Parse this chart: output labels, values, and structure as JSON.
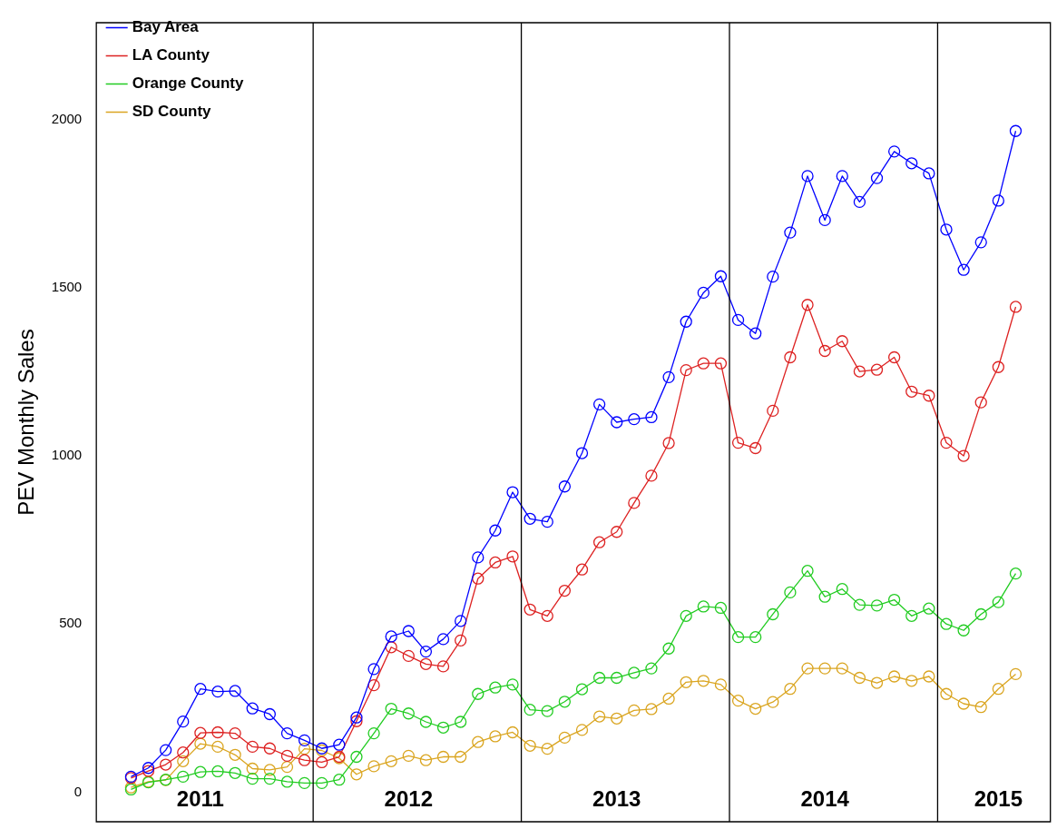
{
  "chart_data": {
    "type": "line",
    "ylabel": "PEV Monthly Sales",
    "x": [
      "2011-02",
      "2011-03",
      "2011-04",
      "2011-05",
      "2011-06",
      "2011-07",
      "2011-08",
      "2011-09",
      "2011-10",
      "2011-11",
      "2011-12",
      "2012-01",
      "2012-02",
      "2012-03",
      "2012-04",
      "2012-05",
      "2012-06",
      "2012-07",
      "2012-08",
      "2012-09",
      "2012-10",
      "2012-11",
      "2012-12",
      "2013-01",
      "2013-02",
      "2013-03",
      "2013-04",
      "2013-05",
      "2013-06",
      "2013-07",
      "2013-08",
      "2013-09",
      "2013-10",
      "2013-11",
      "2013-12",
      "2014-01",
      "2014-02",
      "2014-03",
      "2014-04",
      "2014-05",
      "2014-06",
      "2014-07",
      "2014-08",
      "2014-09",
      "2014-10",
      "2014-11",
      "2014-12",
      "2015-01",
      "2015-02",
      "2015-03",
      "2015-04",
      "2015-05"
    ],
    "series": [
      {
        "name": "Bay Area",
        "color": "#0000ff",
        "values": [
          46,
          72,
          125,
          210,
          307,
          299,
          301,
          249,
          232,
          175,
          154,
          130,
          141,
          222,
          366,
          463,
          479,
          418,
          455,
          509,
          698,
          778,
          892,
          813,
          804,
          909,
          1008,
          1153,
          1100,
          1109,
          1115,
          1234,
          1399,
          1485,
          1534,
          1404,
          1364,
          1533,
          1664,
          1832,
          1701,
          1832,
          1755,
          1826,
          1905,
          1870,
          1840,
          1673,
          1553,
          1635,
          1759,
          1966
        ]
      },
      {
        "name": "LA County",
        "color": "#dd2222",
        "values": [
          42,
          63,
          82,
          118,
          176,
          178,
          175,
          135,
          130,
          108,
          95,
          89,
          105,
          211,
          318,
          431,
          405,
          381,
          374,
          451,
          635,
          683,
          701,
          543,
          524,
          599,
          662,
          743,
          774,
          860,
          941,
          1038,
          1255,
          1275,
          1275,
          1039,
          1023,
          1134,
          1293,
          1449,
          1312,
          1341,
          1251,
          1256,
          1293,
          1191,
          1179,
          1039,
          1000,
          1159,
          1264,
          1443
        ]
      },
      {
        "name": "Orange County",
        "color": "#22cc22",
        "values": [
          8,
          29,
          37,
          46,
          60,
          62,
          57,
          40,
          40,
          31,
          27,
          27,
          37,
          105,
          175,
          248,
          234,
          209,
          192,
          209,
          292,
          311,
          320,
          245,
          241,
          269,
          306,
          340,
          340,
          355,
          368,
          427,
          524,
          552,
          548,
          461,
          461,
          529,
          594,
          658,
          581,
          604,
          557,
          555,
          572,
          524,
          546,
          500,
          481,
          529,
          565,
          650
        ]
      },
      {
        "name": "SD County",
        "color": "#daa520",
        "values": [
          14,
          31,
          36,
          92,
          144,
          135,
          111,
          70,
          66,
          75,
          129,
          124,
          101,
          53,
          77,
          92,
          108,
          95,
          105,
          105,
          149,
          166,
          178,
          138,
          129,
          162,
          185,
          225,
          219,
          243,
          247,
          278,
          327,
          331,
          320,
          272,
          248,
          268,
          307,
          368,
          368,
          368,
          340,
          325,
          344,
          331,
          344,
          292,
          263,
          253,
          307,
          351
        ]
      }
    ],
    "xlim": [
      "2010-12-01",
      "2015-07-01"
    ],
    "xticks": [
      {
        "value": "2011-06-01",
        "label": "2011"
      },
      {
        "value": "2012-06-01",
        "label": "2012"
      },
      {
        "value": "2013-06-01",
        "label": "2013"
      },
      {
        "value": "2014-06-01",
        "label": "2014"
      },
      {
        "value": "2015-04-01",
        "label": "2015"
      }
    ],
    "ylim": [
      -88,
      2288
    ],
    "yticks": [
      0,
      500,
      1000,
      1500,
      2000
    ],
    "ref_lines": [
      {
        "axis": "x",
        "value": "2011-12-16",
        "color": "#000000"
      },
      {
        "axis": "x",
        "value": "2012-12-16",
        "color": "#000000"
      },
      {
        "axis": "x",
        "value": "2013-12-16",
        "color": "#000000"
      },
      {
        "axis": "x",
        "value": "2014-12-16",
        "color": "#000000"
      }
    ],
    "legend": "top left",
    "grid": false,
    "marker": "circle",
    "line_style": "solid"
  }
}
